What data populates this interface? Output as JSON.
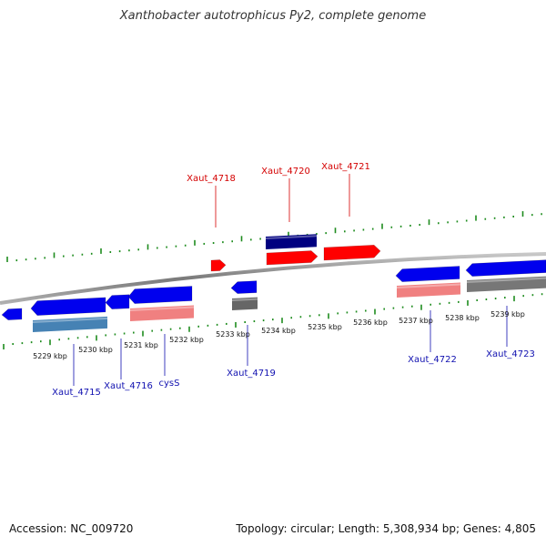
{
  "title": "Xanthobacter autotrophicus Py2, complete genome",
  "footer": {
    "accession": "Accession: NC_009720",
    "summary": "Topology: circular; Length: 5,308,934 bp; Genes: 4,805"
  },
  "colors": {
    "backbone": "#8c8c8c",
    "tick": "#1e8c1e",
    "forward_cds": "#ff0000",
    "reverse_cds": "#0000ee",
    "label_forward": "#d40000",
    "label_reverse": "#1010b0"
  },
  "scale_ticks": [
    "5229 kbp",
    "5230 kbp",
    "5231 kbp",
    "5232 kbp",
    "5233 kbp",
    "5234 kbp",
    "5235 kbp",
    "5236 kbp",
    "5237 kbp",
    "5238 kbp",
    "5239 kbp"
  ],
  "gene_labels": [
    {
      "text": "Xaut_4718",
      "strand": "forward"
    },
    {
      "text": "Xaut_4720",
      "strand": "forward"
    },
    {
      "text": "Xaut_4721",
      "strand": "forward"
    },
    {
      "text": "Xaut_4715",
      "strand": "reverse"
    },
    {
      "text": "Xaut_4716",
      "strand": "reverse"
    },
    {
      "text": "cysS",
      "strand": "reverse"
    },
    {
      "text": "Xaut_4719",
      "strand": "reverse"
    },
    {
      "text": "Xaut_4722",
      "strand": "reverse"
    },
    {
      "text": "Xaut_4723",
      "strand": "reverse"
    }
  ],
  "features": [
    {
      "strand": "forward",
      "kind": "CDS",
      "color": "#ff0000"
    },
    {
      "strand": "forward",
      "kind": "CDS",
      "color": "#ff0000"
    },
    {
      "strand": "forward",
      "kind": "CDS",
      "color": "#ff0000"
    },
    {
      "strand": "forward",
      "kind": "gene",
      "color": "#000080"
    },
    {
      "strand": "reverse",
      "kind": "CDS",
      "color": "#0000ee"
    },
    {
      "strand": "reverse",
      "kind": "gene",
      "color": "#4682b4"
    },
    {
      "strand": "reverse",
      "kind": "gene",
      "color": "#f08080"
    },
    {
      "strand": "reverse",
      "kind": "gene",
      "color": "#666666"
    }
  ]
}
